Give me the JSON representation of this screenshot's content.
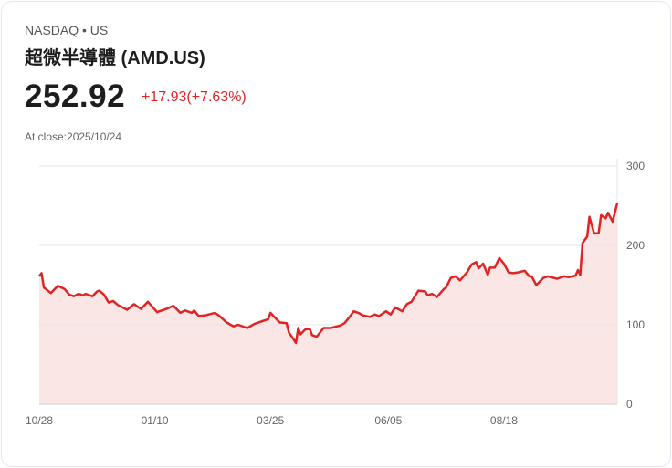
{
  "header": {
    "exchange": "NASDAQ  •  US",
    "title": "超微半導體 (AMD.US)",
    "price": "252.92",
    "change": "+17.93(+7.63%)",
    "close_label": "At close:2025/10/24"
  },
  "colors": {
    "line": "#e02424",
    "fill": "#fbe6e6",
    "grid": "#e6e6e6"
  },
  "chart_data": {
    "type": "area",
    "title": "",
    "xlabel": "",
    "ylabel": "",
    "ylim": [
      0,
      300
    ],
    "xlim": [
      0,
      250
    ],
    "y_ticks": [
      0,
      100,
      200,
      300
    ],
    "x_ticks": [
      {
        "x": 0,
        "label": "10/28"
      },
      {
        "x": 50,
        "label": "01/10"
      },
      {
        "x": 100,
        "label": "03/25"
      },
      {
        "x": 151,
        "label": "06/05"
      },
      {
        "x": 201,
        "label": "08/18"
      }
    ],
    "grid": true,
    "series": [
      {
        "name": "AMD.US",
        "points": [
          [
            0,
            161
          ],
          [
            1,
            165
          ],
          [
            2,
            147
          ],
          [
            5,
            140
          ],
          [
            8,
            149
          ],
          [
            11,
            145
          ],
          [
            13,
            138
          ],
          [
            15,
            136
          ],
          [
            17,
            139
          ],
          [
            19,
            137
          ],
          [
            20,
            139
          ],
          [
            23,
            136
          ],
          [
            25,
            142
          ],
          [
            26,
            143
          ],
          [
            28,
            138
          ],
          [
            30,
            128
          ],
          [
            32,
            130
          ],
          [
            34,
            125
          ],
          [
            38,
            119
          ],
          [
            41,
            126
          ],
          [
            44,
            120
          ],
          [
            47,
            129
          ],
          [
            51,
            116
          ],
          [
            55,
            120
          ],
          [
            58,
            124
          ],
          [
            61,
            115
          ],
          [
            63,
            118
          ],
          [
            66,
            115
          ],
          [
            67,
            118
          ],
          [
            69,
            111
          ],
          [
            72,
            112
          ],
          [
            76,
            115
          ],
          [
            78,
            111
          ],
          [
            81,
            103
          ],
          [
            84,
            98
          ],
          [
            86,
            100
          ],
          [
            90,
            96
          ],
          [
            93,
            101
          ],
          [
            97,
            105
          ],
          [
            99,
            107
          ],
          [
            100,
            115
          ],
          [
            104,
            103
          ],
          [
            107,
            102
          ],
          [
            108,
            90
          ],
          [
            110,
            82
          ],
          [
            111,
            77
          ],
          [
            112,
            96
          ],
          [
            113,
            88
          ],
          [
            115,
            94
          ],
          [
            117,
            95
          ],
          [
            118,
            87
          ],
          [
            120,
            85
          ],
          [
            123,
            96
          ],
          [
            126,
            96
          ],
          [
            130,
            99
          ],
          [
            132,
            102
          ],
          [
            134,
            109
          ],
          [
            136,
            117
          ],
          [
            138,
            115
          ],
          [
            140,
            112
          ],
          [
            143,
            110
          ],
          [
            145,
            113
          ],
          [
            147,
            111
          ],
          [
            150,
            117
          ],
          [
            152,
            113
          ],
          [
            154,
            122
          ],
          [
            157,
            117
          ],
          [
            159,
            126
          ],
          [
            161,
            129
          ],
          [
            164,
            143
          ],
          [
            167,
            142
          ],
          [
            168,
            137
          ],
          [
            170,
            139
          ],
          [
            172,
            135
          ],
          [
            175,
            145
          ],
          [
            176,
            147
          ],
          [
            178,
            159
          ],
          [
            180,
            161
          ],
          [
            182,
            156
          ],
          [
            185,
            166
          ],
          [
            187,
            176
          ],
          [
            189,
            179
          ],
          [
            190,
            171
          ],
          [
            192,
            177
          ],
          [
            194,
            163
          ],
          [
            195,
            172
          ],
          [
            197,
            172
          ],
          [
            199,
            184
          ],
          [
            201,
            177
          ],
          [
            203,
            166
          ],
          [
            205,
            165
          ],
          [
            207,
            166
          ],
          [
            210,
            168
          ],
          [
            212,
            161
          ],
          [
            213,
            161
          ],
          [
            215,
            150
          ],
          [
            218,
            159
          ],
          [
            220,
            161
          ],
          [
            224,
            158
          ],
          [
            227,
            161
          ],
          [
            229,
            160
          ],
          [
            232,
            162
          ],
          [
            233,
            169
          ],
          [
            234,
            163
          ],
          [
            235,
            203
          ],
          [
            237,
            211
          ],
          [
            238,
            236
          ],
          [
            240,
            215
          ],
          [
            242,
            216
          ],
          [
            243,
            238
          ],
          [
            245,
            234
          ],
          [
            246,
            241
          ],
          [
            248,
            230
          ],
          [
            250,
            253
          ]
        ]
      }
    ]
  }
}
